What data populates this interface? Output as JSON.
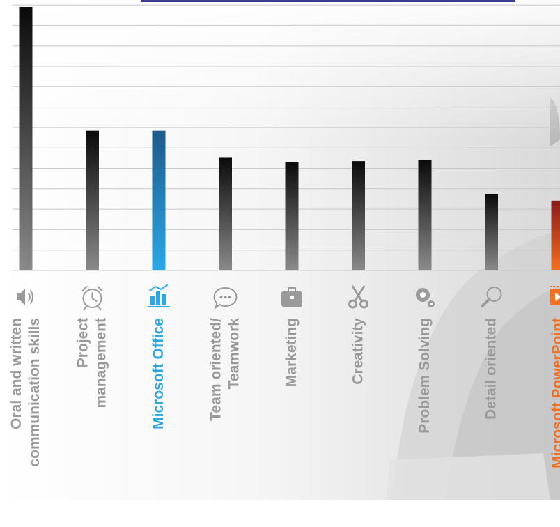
{
  "chart_data": {
    "type": "bar",
    "title": "",
    "xlabel": "",
    "ylabel": "",
    "grid": true,
    "categories": [
      [
        "Oral and written",
        "communication skills"
      ],
      [
        "Project",
        "management"
      ],
      [
        "Microsoft Office"
      ],
      [
        "Team oriented/",
        "Teamwork"
      ],
      [
        "Marketing"
      ],
      [
        "Creativity"
      ],
      [
        "Problem Solving"
      ],
      [
        "Detail oriented"
      ],
      [
        "Microsoft PowerPoint"
      ]
    ],
    "values": [
      100,
      53,
      53,
      43,
      41,
      41.5,
      42,
      29,
      26.5
    ],
    "ylim": [
      0,
      100
    ],
    "highlights": {
      "2": "blue",
      "8": "orange"
    },
    "icons": [
      "speaker-icon",
      "alarm-clock-icon",
      "bar-chart-icon",
      "chat-bubble-icon",
      "briefcase-icon",
      "scissors-icon",
      "gears-icon",
      "magnifier-icon",
      "powerpoint-icon"
    ],
    "colors": {
      "bar_top": "#0a0a0a",
      "bar_bottom": "#8a8a8a",
      "blue_top": "#1e5a8c",
      "blue_bottom": "#2aa8e6",
      "orange_top": "#8b1a1a",
      "orange_bottom": "#f36f21",
      "label_gray": "#9a9a9a",
      "label_blue": "#2aa8e6",
      "label_orange": "#f36f21",
      "grid": "#c8c8c8",
      "top_bar": "#3a3f8f"
    }
  }
}
